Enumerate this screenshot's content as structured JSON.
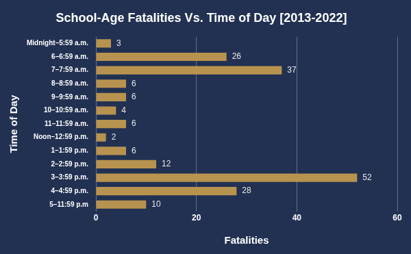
{
  "chart_data": {
    "type": "bar",
    "orientation": "horizontal",
    "title": "School-Age Fatalities Vs. Time of Day [2013-2022]",
    "x_label": "Fatalities",
    "y_label": "Time of Day",
    "categories": [
      "Midnight–5:59 a.m.",
      "6–6:59 a.m.",
      "7–7:59 a.m.",
      "8–8:59 a.m.",
      "9–9:59 a.m.",
      "10–10:59 a.m.",
      "11–11:59 a.m.",
      "Noon–12:59 p.m.",
      "1–1:59 p.m.",
      "2–2:59 p.m.",
      "3–3:59 p.m.",
      "4–4:59 p.m.",
      "5–11:59 p.m"
    ],
    "values": [
      3,
      26,
      37,
      6,
      6,
      4,
      6,
      2,
      6,
      12,
      52,
      28,
      10
    ],
    "color": "#b8924f",
    "xlim": [
      0,
      60
    ],
    "xticks": [
      0,
      20,
      40,
      60
    ],
    "grid": true,
    "data_labels": true
  }
}
